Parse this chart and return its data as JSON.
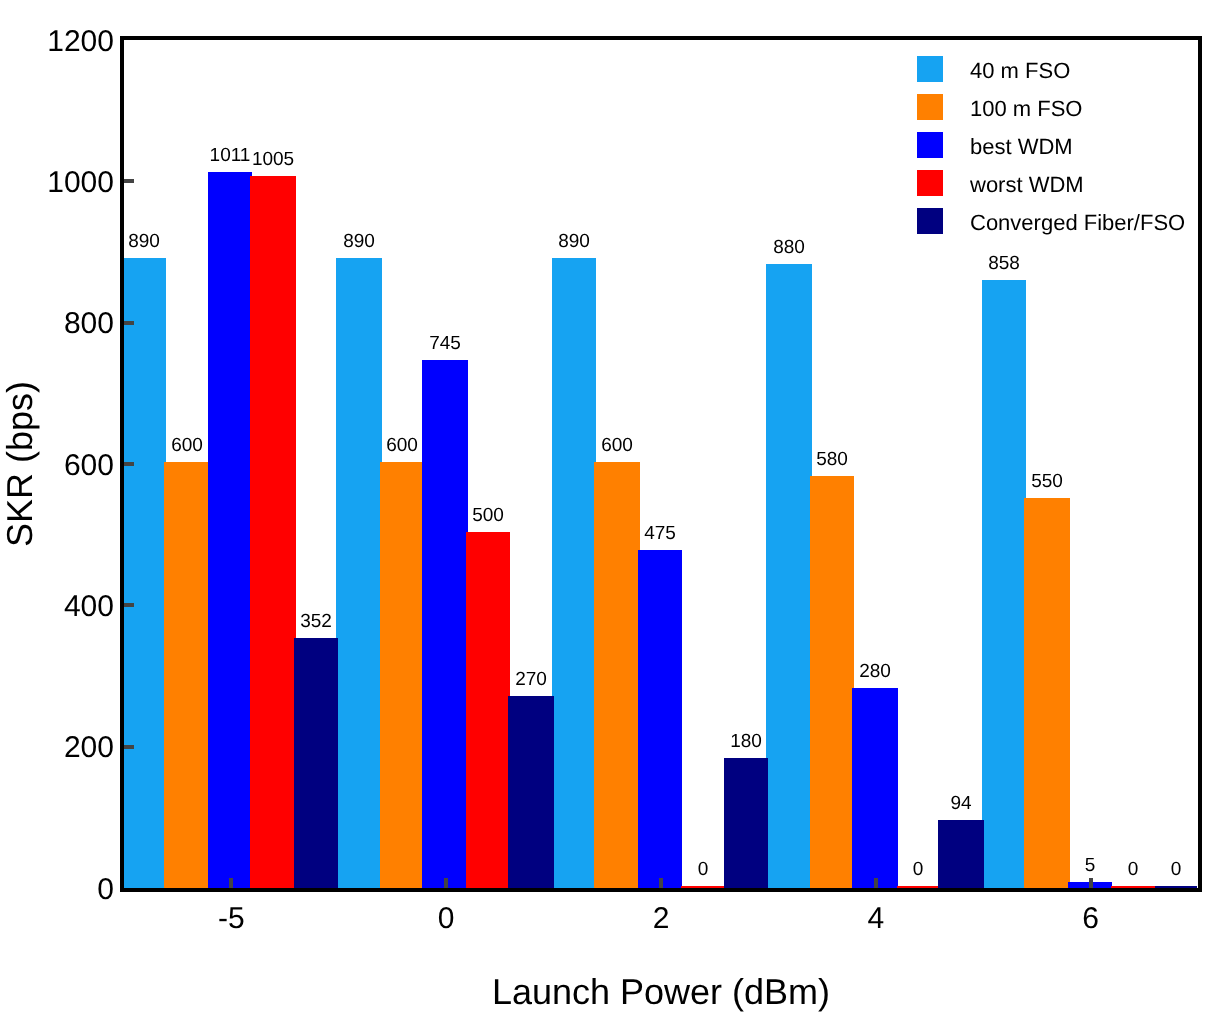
{
  "chart_data": {
    "type": "bar",
    "xlabel": "Launch Power (dBm)",
    "ylabel": "SKR (bps)",
    "categories": [
      "-5",
      "0",
      "2",
      "4",
      "6"
    ],
    "series": [
      {
        "name": "40 m FSO",
        "color": "#16a3f2",
        "values": [
          890,
          890,
          890,
          880,
          858
        ]
      },
      {
        "name": "100 m FSO",
        "color": "#ff8000",
        "values": [
          600,
          600,
          600,
          580,
          550
        ]
      },
      {
        "name": "best WDM",
        "color": "#0000ff",
        "values": [
          1011,
          745,
          475,
          280,
          5
        ]
      },
      {
        "name": "worst WDM",
        "color": "#ff0000",
        "values": [
          1005,
          500,
          0,
          0,
          0
        ]
      },
      {
        "name": "Converged Fiber/FSO",
        "color": "#000080",
        "values": [
          352,
          270,
          180,
          94,
          0
        ]
      }
    ],
    "ylim": [
      0,
      1200
    ],
    "yticks": [
      0,
      200,
      400,
      600,
      800,
      1000,
      1200
    ],
    "grid": false,
    "legend": "top right",
    "data_labels": true
  }
}
